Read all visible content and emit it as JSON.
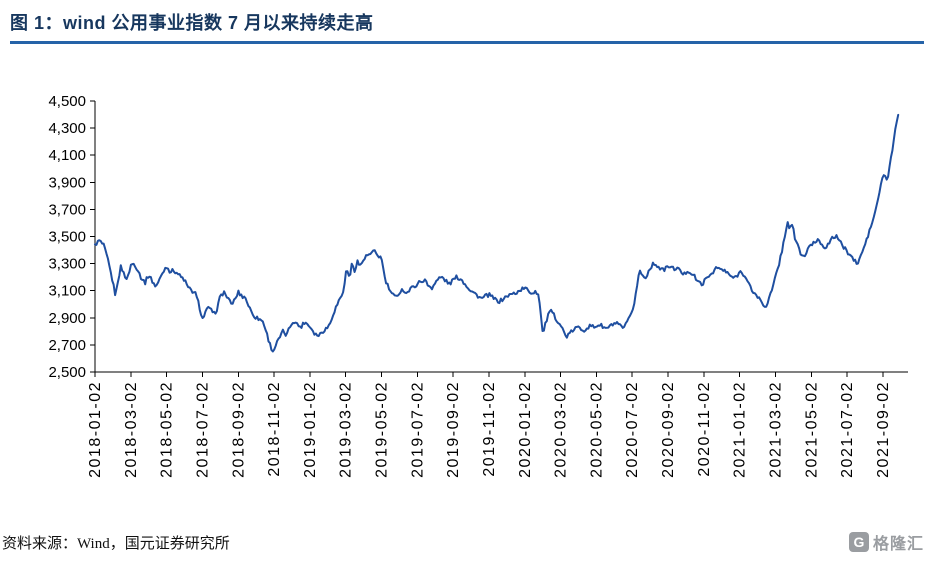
{
  "figure": {
    "title": "图 1：wind 公用事业指数 7 月以来持续走高",
    "source": "资料来源：Wind，国元证券研究所"
  },
  "branding": {
    "logo_letter": "G",
    "logo_text": "格隆汇"
  },
  "theme": {
    "title_color": "#17375E",
    "rule_color": "#2563A8",
    "logo_gray": "#9A9DA1"
  },
  "chart_data": {
    "type": "line",
    "series": "wind公用事业指数",
    "title": "",
    "xlabel": "",
    "ylabel": "",
    "grid": false,
    "legend": false,
    "line_color": "#1F4FA0",
    "axis_color": "#000000",
    "ylim": [
      2500,
      4500
    ],
    "x_domain": [
      0,
      45.4
    ],
    "x_unit": "months-since-2018-01-02",
    "y_ticks": [
      {
        "value": 2500,
        "label": "2,500"
      },
      {
        "value": 2700,
        "label": "2,700"
      },
      {
        "value": 2900,
        "label": "2,900"
      },
      {
        "value": 3100,
        "label": "3,100"
      },
      {
        "value": 3300,
        "label": "3,300"
      },
      {
        "value": 3500,
        "label": "3,500"
      },
      {
        "value": 3700,
        "label": "3,700"
      },
      {
        "value": 3900,
        "label": "3,900"
      },
      {
        "value": 4100,
        "label": "4,100"
      },
      {
        "value": 4300,
        "label": "4,300"
      },
      {
        "value": 4500,
        "label": "4,500"
      }
    ],
    "x_ticks": [
      {
        "t": 0,
        "label": "2018-01-02"
      },
      {
        "t": 2,
        "label": "2018-03-02"
      },
      {
        "t": 4,
        "label": "2018-05-02"
      },
      {
        "t": 6,
        "label": "2018-07-02"
      },
      {
        "t": 8,
        "label": "2018-09-02"
      },
      {
        "t": 10,
        "label": "2018-11-02"
      },
      {
        "t": 12,
        "label": "2019-01-02"
      },
      {
        "t": 14,
        "label": "2019-03-02"
      },
      {
        "t": 16,
        "label": "2019-05-02"
      },
      {
        "t": 18,
        "label": "2019-07-02"
      },
      {
        "t": 20,
        "label": "2019-09-02"
      },
      {
        "t": 22,
        "label": "2019-11-02"
      },
      {
        "t": 24,
        "label": "2020-01-02"
      },
      {
        "t": 26,
        "label": "2020-03-02"
      },
      {
        "t": 28,
        "label": "2020-05-02"
      },
      {
        "t": 30,
        "label": "2020-07-02"
      },
      {
        "t": 32,
        "label": "2020-09-02"
      },
      {
        "t": 34,
        "label": "2020-11-02"
      },
      {
        "t": 36,
        "label": "2021-01-02"
      },
      {
        "t": 38,
        "label": "2021-03-02"
      },
      {
        "t": 40,
        "label": "2021-05-02"
      },
      {
        "t": 42,
        "label": "2021-07-02"
      },
      {
        "t": 44,
        "label": "2021-09-02"
      }
    ],
    "points": [
      [
        0,
        3440
      ],
      [
        0.25,
        3470
      ],
      [
        0.5,
        3430
      ],
      [
        0.75,
        3310
      ],
      [
        1,
        3160
      ],
      [
        1.15,
        3060
      ],
      [
        1.3,
        3190
      ],
      [
        1.45,
        3280
      ],
      [
        1.6,
        3230
      ],
      [
        1.8,
        3180
      ],
      [
        2,
        3290
      ],
      [
        2.2,
        3300
      ],
      [
        2.4,
        3250
      ],
      [
        2.6,
        3190
      ],
      [
        2.8,
        3160
      ],
      [
        3,
        3220
      ],
      [
        3.2,
        3170
      ],
      [
        3.4,
        3130
      ],
      [
        3.6,
        3180
      ],
      [
        3.8,
        3240
      ],
      [
        4,
        3280
      ],
      [
        4.2,
        3240
      ],
      [
        4.4,
        3250
      ],
      [
        4.6,
        3230
      ],
      [
        4.8,
        3200
      ],
      [
        5,
        3180
      ],
      [
        5.2,
        3120
      ],
      [
        5.4,
        3100
      ],
      [
        5.6,
        3080
      ],
      [
        5.8,
        3000
      ],
      [
        6,
        2890
      ],
      [
        6.2,
        2950
      ],
      [
        6.4,
        2980
      ],
      [
        6.6,
        2920
      ],
      [
        6.8,
        2960
      ],
      [
        7,
        3060
      ],
      [
        7.2,
        3090
      ],
      [
        7.4,
        3050
      ],
      [
        7.6,
        3000
      ],
      [
        7.8,
        3030
      ],
      [
        8,
        3090
      ],
      [
        8.2,
        3060
      ],
      [
        8.4,
        3050
      ],
      [
        8.6,
        2980
      ],
      [
        8.8,
        2930
      ],
      [
        9,
        2900
      ],
      [
        9.2,
        2890
      ],
      [
        9.4,
        2870
      ],
      [
        9.6,
        2780
      ],
      [
        9.8,
        2690
      ],
      [
        9.95,
        2650
      ],
      [
        10.1,
        2700
      ],
      [
        10.3,
        2750
      ],
      [
        10.5,
        2800
      ],
      [
        10.7,
        2770
      ],
      [
        10.9,
        2840
      ],
      [
        11.1,
        2880
      ],
      [
        11.3,
        2850
      ],
      [
        11.5,
        2830
      ],
      [
        11.7,
        2870
      ],
      [
        11.9,
        2850
      ],
      [
        12.1,
        2820
      ],
      [
        12.3,
        2780
      ],
      [
        12.5,
        2770
      ],
      [
        12.7,
        2800
      ],
      [
        12.9,
        2820
      ],
      [
        13.1,
        2850
      ],
      [
        13.3,
        2930
      ],
      [
        13.5,
        2990
      ],
      [
        13.7,
        3050
      ],
      [
        13.9,
        3100
      ],
      [
        14.05,
        3290
      ],
      [
        14.2,
        3180
      ],
      [
        14.35,
        3300
      ],
      [
        14.5,
        3250
      ],
      [
        14.65,
        3320
      ],
      [
        14.8,
        3280
      ],
      [
        15,
        3330
      ],
      [
        15.2,
        3360
      ],
      [
        15.4,
        3370
      ],
      [
        15.6,
        3390
      ],
      [
        15.8,
        3360
      ],
      [
        16,
        3340
      ],
      [
        16.2,
        3180
      ],
      [
        16.4,
        3120
      ],
      [
        16.6,
        3070
      ],
      [
        16.8,
        3050
      ],
      [
        17,
        3090
      ],
      [
        17.2,
        3110
      ],
      [
        17.4,
        3080
      ],
      [
        17.6,
        3110
      ],
      [
        17.8,
        3130
      ],
      [
        18,
        3150
      ],
      [
        18.2,
        3170
      ],
      [
        18.4,
        3180
      ],
      [
        18.6,
        3140
      ],
      [
        18.8,
        3120
      ],
      [
        19,
        3160
      ],
      [
        19.2,
        3190
      ],
      [
        19.4,
        3200
      ],
      [
        19.6,
        3170
      ],
      [
        19.8,
        3150
      ],
      [
        20,
        3180
      ],
      [
        20.2,
        3200
      ],
      [
        20.4,
        3190
      ],
      [
        20.6,
        3160
      ],
      [
        20.8,
        3130
      ],
      [
        21,
        3100
      ],
      [
        21.2,
        3080
      ],
      [
        21.4,
        3060
      ],
      [
        21.6,
        3040
      ],
      [
        21.8,
        3060
      ],
      [
        22,
        3070
      ],
      [
        22.2,
        3050
      ],
      [
        22.4,
        3030
      ],
      [
        22.6,
        3020
      ],
      [
        22.8,
        3040
      ],
      [
        23,
        3060
      ],
      [
        23.2,
        3070
      ],
      [
        23.4,
        3080
      ],
      [
        23.6,
        3090
      ],
      [
        23.8,
        3110
      ],
      [
        24,
        3120
      ],
      [
        24.2,
        3100
      ],
      [
        24.4,
        3080
      ],
      [
        24.6,
        3100
      ],
      [
        24.8,
        3060
      ],
      [
        25,
        2780
      ],
      [
        25.15,
        2850
      ],
      [
        25.3,
        2920
      ],
      [
        25.5,
        2950
      ],
      [
        25.7,
        2900
      ],
      [
        25.9,
        2870
      ],
      [
        26.1,
        2820
      ],
      [
        26.3,
        2760
      ],
      [
        26.5,
        2780
      ],
      [
        26.7,
        2810
      ],
      [
        26.9,
        2830
      ],
      [
        27.1,
        2820
      ],
      [
        27.3,
        2810
      ],
      [
        27.5,
        2830
      ],
      [
        27.7,
        2840
      ],
      [
        27.9,
        2830
      ],
      [
        28.1,
        2850
      ],
      [
        28.3,
        2840
      ],
      [
        28.5,
        2820
      ],
      [
        28.7,
        2830
      ],
      [
        28.9,
        2850
      ],
      [
        29.1,
        2860
      ],
      [
        29.3,
        2840
      ],
      [
        29.5,
        2820
      ],
      [
        29.7,
        2860
      ],
      [
        29.9,
        2910
      ],
      [
        30.1,
        3000
      ],
      [
        30.25,
        3120
      ],
      [
        30.4,
        3250
      ],
      [
        30.55,
        3220
      ],
      [
        30.7,
        3190
      ],
      [
        30.9,
        3240
      ],
      [
        31.1,
        3290
      ],
      [
        31.3,
        3300
      ],
      [
        31.5,
        3270
      ],
      [
        31.7,
        3250
      ],
      [
        31.9,
        3270
      ],
      [
        32.1,
        3280
      ],
      [
        32.3,
        3260
      ],
      [
        32.5,
        3270
      ],
      [
        32.7,
        3240
      ],
      [
        32.9,
        3220
      ],
      [
        33.1,
        3250
      ],
      [
        33.3,
        3230
      ],
      [
        33.5,
        3200
      ],
      [
        33.7,
        3160
      ],
      [
        33.9,
        3150
      ],
      [
        34.1,
        3180
      ],
      [
        34.3,
        3210
      ],
      [
        34.5,
        3240
      ],
      [
        34.7,
        3270
      ],
      [
        34.9,
        3260
      ],
      [
        35.1,
        3250
      ],
      [
        35.3,
        3230
      ],
      [
        35.5,
        3210
      ],
      [
        35.7,
        3190
      ],
      [
        35.9,
        3220
      ],
      [
        36.1,
        3250
      ],
      [
        36.3,
        3200
      ],
      [
        36.5,
        3150
      ],
      [
        36.7,
        3100
      ],
      [
        36.9,
        3070
      ],
      [
        37.1,
        3040
      ],
      [
        37.3,
        3000
      ],
      [
        37.45,
        2980
      ],
      [
        37.6,
        3030
      ],
      [
        37.8,
        3100
      ],
      [
        38,
        3200
      ],
      [
        38.2,
        3300
      ],
      [
        38.4,
        3420
      ],
      [
        38.55,
        3520
      ],
      [
        38.65,
        3610
      ],
      [
        38.8,
        3560
      ],
      [
        38.95,
        3580
      ],
      [
        39.1,
        3480
      ],
      [
        39.25,
        3440
      ],
      [
        39.4,
        3370
      ],
      [
        39.6,
        3350
      ],
      [
        39.8,
        3400
      ],
      [
        40,
        3440
      ],
      [
        40.2,
        3460
      ],
      [
        40.4,
        3480
      ],
      [
        40.6,
        3440
      ],
      [
        40.8,
        3420
      ],
      [
        41,
        3450
      ],
      [
        41.2,
        3490
      ],
      [
        41.4,
        3510
      ],
      [
        41.6,
        3460
      ],
      [
        41.8,
        3420
      ],
      [
        42,
        3390
      ],
      [
        42.2,
        3360
      ],
      [
        42.4,
        3320
      ],
      [
        42.6,
        3300
      ],
      [
        42.8,
        3370
      ],
      [
        43,
        3440
      ],
      [
        43.2,
        3520
      ],
      [
        43.4,
        3600
      ],
      [
        43.6,
        3700
      ],
      [
        43.8,
        3820
      ],
      [
        43.95,
        3930
      ],
      [
        44.1,
        3960
      ],
      [
        44.25,
        3900
      ],
      [
        44.4,
        4050
      ],
      [
        44.55,
        4150
      ],
      [
        44.7,
        4300
      ],
      [
        44.85,
        4400
      ]
    ]
  }
}
